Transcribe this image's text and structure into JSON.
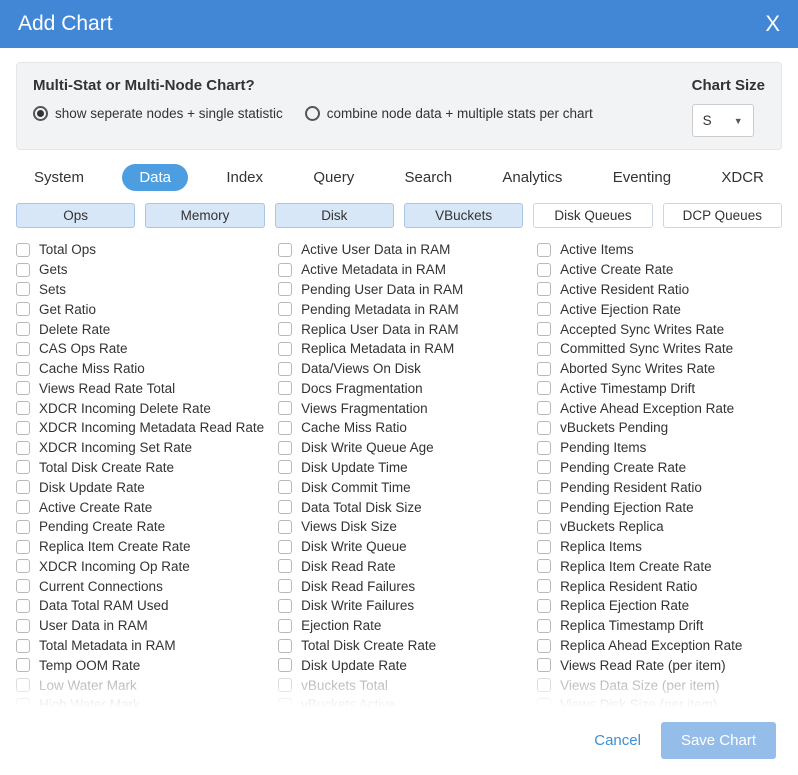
{
  "title": "Add Chart",
  "config": {
    "question": "Multi-Stat or Multi-Node Chart?",
    "options": [
      {
        "label": "show seperate nodes + single statistic",
        "selected": true
      },
      {
        "label": "combine node data + multiple stats per chart",
        "selected": false
      }
    ],
    "size_label": "Chart Size",
    "size_value": "S"
  },
  "tabs": [
    {
      "label": "System",
      "active": false
    },
    {
      "label": "Data",
      "active": true
    },
    {
      "label": "Index",
      "active": false
    },
    {
      "label": "Query",
      "active": false
    },
    {
      "label": "Search",
      "active": false
    },
    {
      "label": "Analytics",
      "active": false
    },
    {
      "label": "Eventing",
      "active": false
    },
    {
      "label": "XDCR",
      "active": false
    }
  ],
  "subtabs": [
    {
      "label": "Ops",
      "active": true
    },
    {
      "label": "Memory",
      "active": true
    },
    {
      "label": "Disk",
      "active": true
    },
    {
      "label": "VBuckets",
      "active": true
    },
    {
      "label": "Disk Queues",
      "active": false
    },
    {
      "label": "DCP Queues",
      "active": false
    }
  ],
  "columns": [
    [
      {
        "label": "Total Ops"
      },
      {
        "label": "Gets"
      },
      {
        "label": "Sets"
      },
      {
        "label": "Get Ratio"
      },
      {
        "label": "Delete Rate"
      },
      {
        "label": "CAS Ops Rate"
      },
      {
        "label": "Cache Miss Ratio"
      },
      {
        "label": "Views Read Rate Total"
      },
      {
        "label": "XDCR Incoming Delete Rate"
      },
      {
        "label": "XDCR Incoming Metadata Read Rate"
      },
      {
        "label": "XDCR Incoming Set Rate"
      },
      {
        "label": "Total Disk Create Rate"
      },
      {
        "label": "Disk Update Rate"
      },
      {
        "label": "Active Create Rate"
      },
      {
        "label": "Pending Create Rate"
      },
      {
        "label": "Replica Item Create Rate"
      },
      {
        "label": "XDCR Incoming Op Rate"
      },
      {
        "label": "Current Connections"
      },
      {
        "label": "Data Total RAM Used"
      },
      {
        "label": "User Data in RAM"
      },
      {
        "label": "Total Metadata in RAM"
      },
      {
        "label": "Temp OOM Rate"
      },
      {
        "label": "Low Water Mark",
        "faded": true
      },
      {
        "label": "High Water Mark",
        "faded": true
      }
    ],
    [
      {
        "label": "Active User Data in RAM"
      },
      {
        "label": "Active Metadata in RAM"
      },
      {
        "label": "Pending User Data in RAM"
      },
      {
        "label": "Pending Metadata in RAM"
      },
      {
        "label": "Replica User Data in RAM"
      },
      {
        "label": "Replica Metadata in RAM"
      },
      {
        "label": "Data/Views On Disk"
      },
      {
        "label": "Docs Fragmentation"
      },
      {
        "label": "Views Fragmentation"
      },
      {
        "label": "Cache Miss Ratio"
      },
      {
        "label": "Disk Write Queue Age"
      },
      {
        "label": "Disk Update Time"
      },
      {
        "label": "Disk Commit Time"
      },
      {
        "label": "Data Total Disk Size"
      },
      {
        "label": "Views Disk Size"
      },
      {
        "label": "Disk Write Queue"
      },
      {
        "label": "Disk Read Rate"
      },
      {
        "label": "Disk Read Failures"
      },
      {
        "label": "Disk Write Failures"
      },
      {
        "label": "Ejection Rate"
      },
      {
        "label": "Total Disk Create Rate"
      },
      {
        "label": "Disk Update Rate"
      },
      {
        "label": "vBuckets Total",
        "faded": true
      },
      {
        "label": "vBuckets Active",
        "faded": true
      }
    ],
    [
      {
        "label": "Active Items"
      },
      {
        "label": "Active Create Rate"
      },
      {
        "label": "Active Resident Ratio"
      },
      {
        "label": "Active Ejection Rate"
      },
      {
        "label": "Accepted Sync Writes Rate"
      },
      {
        "label": "Committed Sync Writes Rate"
      },
      {
        "label": "Aborted Sync Writes Rate"
      },
      {
        "label": "Active Timestamp Drift"
      },
      {
        "label": "Active Ahead Exception Rate"
      },
      {
        "label": "vBuckets Pending"
      },
      {
        "label": "Pending Items"
      },
      {
        "label": "Pending Create Rate"
      },
      {
        "label": "Pending Resident Ratio"
      },
      {
        "label": "Pending Ejection Rate"
      },
      {
        "label": "vBuckets Replica"
      },
      {
        "label": "Replica Items"
      },
      {
        "label": "Replica Item Create Rate"
      },
      {
        "label": "Replica Resident Ratio"
      },
      {
        "label": "Replica Ejection Rate"
      },
      {
        "label": "Replica Timestamp Drift"
      },
      {
        "label": "Replica Ahead Exception Rate"
      },
      {
        "label": "Views Read Rate (per item)"
      },
      {
        "label": "Views Data Size (per item)",
        "faded": true
      },
      {
        "label": "Views Disk Size (per item)",
        "faded": true
      }
    ]
  ],
  "footer": {
    "cancel": "Cancel",
    "save": "Save Chart"
  },
  "colors": {
    "header_bg": "#4287d6",
    "active_tab_bg": "#4c9ee0",
    "subtab_active_bg": "#d7e7f7",
    "save_btn_bg": "#94bde9",
    "link_color": "#3f8fd1"
  }
}
